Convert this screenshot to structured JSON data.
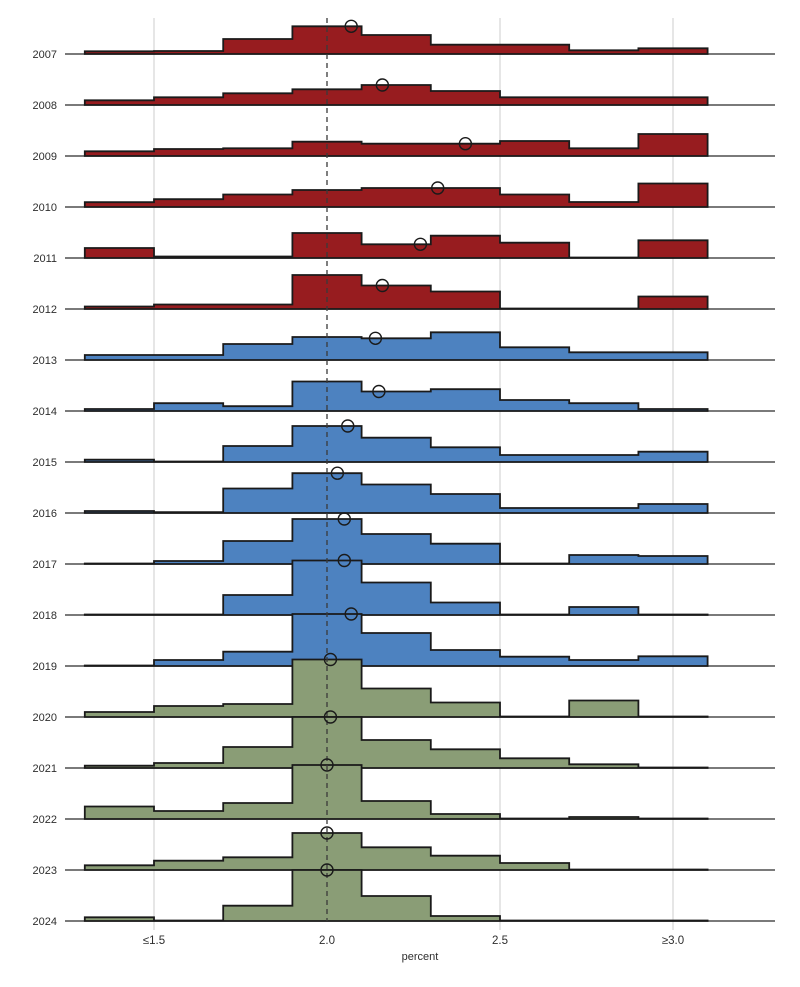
{
  "chart_data": {
    "type": "ridgeline-histogram",
    "description_title": "",
    "xlabel": "percent",
    "x_axis": {
      "ticks": [
        {
          "label": "≤1.5",
          "value": 1.5,
          "gridline": "light"
        },
        {
          "label": "2.0",
          "value": 2.0,
          "gridline": "dashed"
        },
        {
          "label": "2.5",
          "value": 2.5,
          "gridline": "light"
        },
        {
          "label": "≥3.0",
          "value": 3.0,
          "gridline": "light"
        }
      ],
      "range": [
        1.19,
        3.3
      ]
    },
    "reference_value": 2.0,
    "bin_edges": [
      1.3,
      1.5,
      1.7,
      1.9,
      2.1,
      2.3,
      2.5,
      2.7,
      2.9,
      3.1
    ],
    "height_units": "relative density (px at source scale)",
    "colors": {
      "red": "#971c1f",
      "blue": "#4d82c0",
      "green": "#8a9d76",
      "outline": "#1a1a1a",
      "baseline": "#2a2a2a",
      "gridline": "#dcdcdc",
      "reference_line": "#3a3a3a",
      "text": "#2e2e2e"
    },
    "rows": [
      {
        "year": "2007",
        "group": "red",
        "heights": [
          2.7,
          3,
          15,
          27.7,
          19,
          9.3,
          9.3,
          3.7,
          5.7
        ],
        "median": 2.07
      },
      {
        "year": "2008",
        "group": "red",
        "heights": [
          4.7,
          7.7,
          11.7,
          15.7,
          20,
          14,
          7.7,
          7.7,
          7.7
        ],
        "median": 2.16
      },
      {
        "year": "2009",
        "group": "red",
        "heights": [
          4.7,
          7,
          7.7,
          14.3,
          12.3,
          12.3,
          15,
          7.7,
          22
        ],
        "median": 2.4
      },
      {
        "year": "2010",
        "group": "red",
        "heights": [
          4.8,
          7.8,
          12.5,
          17,
          19,
          19,
          12.5,
          5,
          23.5
        ],
        "median": 2.32
      },
      {
        "year": "2011",
        "group": "red",
        "heights": [
          10,
          1.5,
          1.5,
          25,
          13.7,
          22.3,
          15.3,
          0.5,
          17.7
        ],
        "median": 2.27
      },
      {
        "year": "2012",
        "group": "red",
        "heights": [
          2.5,
          4.5,
          4.5,
          34,
          23.5,
          17.5,
          0.5,
          0.5,
          12.5
        ],
        "median": 2.16
      },
      {
        "year": "2013",
        "group": "blue",
        "heights": [
          5,
          5,
          16,
          23,
          21.7,
          27.7,
          12.7,
          7.7,
          7.7
        ],
        "median": 2.14
      },
      {
        "year": "2014",
        "group": "blue",
        "heights": [
          2,
          7.8,
          4.8,
          29.5,
          19.5,
          21.8,
          11,
          7.8,
          2
        ],
        "median": 2.15
      },
      {
        "year": "2015",
        "group": "blue",
        "heights": [
          2.3,
          0.5,
          16,
          36,
          24.3,
          14.7,
          7,
          7,
          10.3
        ],
        "median": 2.06
      },
      {
        "year": "2016",
        "group": "blue",
        "heights": [
          2,
          0.8,
          24.5,
          39.8,
          28.5,
          19,
          5,
          5,
          9
        ],
        "median": 2.03
      },
      {
        "year": "2017",
        "group": "blue",
        "heights": [
          0.5,
          3,
          23,
          45,
          30,
          20.3,
          0.5,
          9,
          8
        ],
        "median": 2.05
      },
      {
        "year": "2018",
        "group": "blue",
        "heights": [
          0.5,
          0.5,
          20,
          54.5,
          32.5,
          12.5,
          0.5,
          8,
          0.5
        ],
        "median": 2.05
      },
      {
        "year": "2019",
        "group": "blue",
        "heights": [
          0.5,
          6,
          14.3,
          52,
          33,
          16,
          9.3,
          6,
          9.7
        ],
        "median": 2.07
      },
      {
        "year": "2020",
        "group": "green",
        "heights": [
          5,
          11,
          13,
          57.5,
          28.5,
          14.5,
          0.5,
          16.5,
          0.5
        ],
        "median": 2.01
      },
      {
        "year": "2021",
        "group": "green",
        "heights": [
          2.3,
          5,
          21,
          51,
          28,
          18.7,
          9.7,
          3.7,
          0.5
        ],
        "median": 2.01
      },
      {
        "year": "2022",
        "group": "green",
        "heights": [
          12.5,
          8,
          16,
          54,
          18,
          5,
          0.5,
          2,
          0.5
        ],
        "median": 2.0
      },
      {
        "year": "2023",
        "group": "green",
        "heights": [
          4.7,
          9.3,
          12.7,
          37,
          22.7,
          14.3,
          7,
          0.5,
          0.5
        ],
        "median": 2.0
      },
      {
        "year": "2024",
        "group": "green",
        "heights": [
          3.7,
          0.5,
          15.3,
          51,
          25,
          5,
          0.5,
          0.5,
          0.5
        ],
        "median": 2.0
      }
    ]
  }
}
